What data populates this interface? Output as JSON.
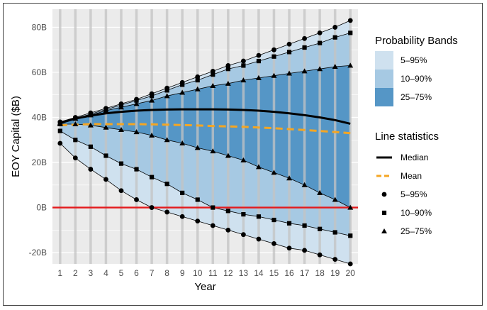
{
  "chart_data": {
    "type": "line",
    "title": "",
    "xlabel": "Year",
    "ylabel": "EOY Capital ($B)",
    "x": [
      1,
      2,
      3,
      4,
      5,
      6,
      7,
      8,
      9,
      10,
      11,
      12,
      13,
      14,
      15,
      16,
      17,
      18,
      19,
      20
    ],
    "xlim": [
      0.5,
      20.5
    ],
    "ylim": [
      -25,
      88
    ],
    "y_ticks": [
      {
        "value": -20,
        "label": "-20B"
      },
      {
        "value": 0,
        "label": "0B"
      },
      {
        "value": 20,
        "label": "20B"
      },
      {
        "value": 40,
        "label": "40B"
      },
      {
        "value": 60,
        "label": "60B"
      },
      {
        "value": 80,
        "label": "80B"
      }
    ],
    "x_tick_labels": [
      "1",
      "2",
      "3",
      "4",
      "5",
      "6",
      "7",
      "8",
      "9",
      "10",
      "11",
      "12",
      "13",
      "14",
      "15",
      "16",
      "17",
      "18",
      "19",
      "20"
    ],
    "grid": true,
    "zero_line": {
      "value": 0,
      "color": "#e41a1c"
    },
    "bands": [
      {
        "name": "5–95%",
        "color": "#cfe1ef",
        "lower": [
          28.5,
          22,
          17,
          12.5,
          7.5,
          3.5,
          0,
          -2,
          -4,
          -6,
          -8,
          -10,
          -12,
          -14,
          -16,
          -18,
          -19,
          -21,
          -23,
          -25
        ],
        "upper": [
          38,
          40,
          42,
          44,
          46,
          48,
          50.5,
          53,
          55.5,
          58,
          60.5,
          63,
          65,
          67.5,
          70,
          72.5,
          75,
          77.5,
          80,
          83
        ]
      },
      {
        "name": "10–90%",
        "color": "#a6c9e3",
        "lower": [
          34,
          30,
          27,
          23,
          19.5,
          17,
          13.5,
          10.5,
          6.5,
          3.5,
          0,
          -1.5,
          -3,
          -4,
          -5.5,
          -7,
          -8,
          -9.5,
          -11,
          -12.5
        ],
        "upper": [
          37.5,
          39.5,
          41.5,
          43.5,
          45.5,
          47.5,
          49.5,
          52,
          54.5,
          56.5,
          59,
          61.5,
          63,
          65,
          67,
          69,
          71,
          73,
          75.5,
          77.5
        ]
      },
      {
        "name": "25–75%",
        "color": "#5596c6",
        "lower": [
          37,
          37,
          36.5,
          35.5,
          34.5,
          33.5,
          32,
          30,
          28.5,
          26.5,
          25,
          23,
          21,
          18,
          15.5,
          13,
          10,
          6.5,
          3.5,
          0
        ],
        "upper": [
          37.5,
          39.5,
          41,
          43,
          44.5,
          46,
          47.5,
          49.5,
          51,
          52.5,
          54,
          55,
          56.5,
          57.5,
          58.5,
          59.5,
          60.5,
          61.5,
          62.5,
          63
        ]
      }
    ],
    "series": [
      {
        "name": "Median",
        "color": "#000000",
        "dash": "solid",
        "values": [
          37.5,
          39.5,
          40.8,
          41.8,
          42.5,
          43,
          43.3,
          43.5,
          43.6,
          43.6,
          43.6,
          43.5,
          43.3,
          43,
          42.5,
          41.8,
          41,
          40,
          38.8,
          37.2
        ]
      },
      {
        "name": "Mean",
        "color": "#f5a623",
        "dash": "dashed",
        "values": [
          36.5,
          36.8,
          37,
          37,
          37,
          37,
          36.9,
          36.8,
          36.6,
          36.4,
          36.2,
          36,
          35.8,
          35.5,
          35.2,
          34.8,
          34.4,
          34,
          33.5,
          33
        ]
      }
    ],
    "legend": {
      "placement": "right",
      "bands_title": "Probability Bands",
      "band_items": [
        "5–95%",
        "10–90%",
        "25–75%"
      ],
      "lines_title": "Line statistics",
      "line_items": [
        "Median",
        "Mean",
        "5–95%",
        "10–90%",
        "25–75%"
      ]
    },
    "colors": {
      "panel_bg": "#ebebeb",
      "grid": "#ffffff",
      "band_5_95": "#cfe1ef",
      "band_10_90": "#a6c9e3",
      "band_25_75": "#5596c6",
      "median": "#000000",
      "mean": "#f5a623",
      "zero_line": "#e41a1c"
    }
  }
}
